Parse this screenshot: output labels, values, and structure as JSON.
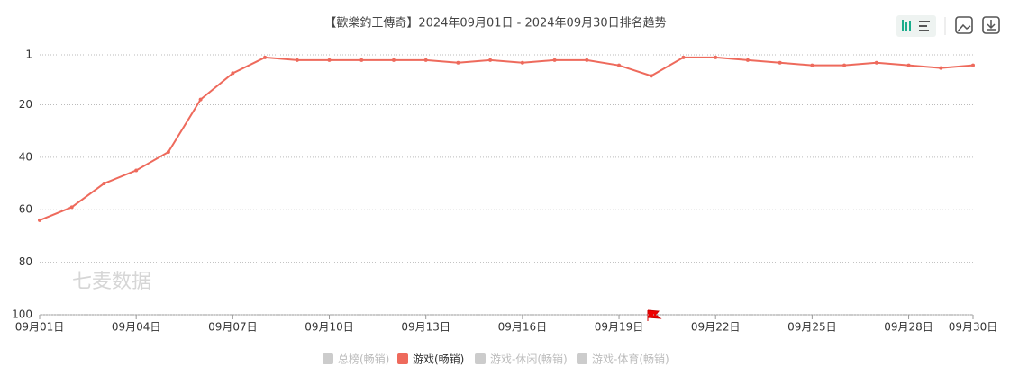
{
  "chart_data": {
    "type": "line",
    "title": "【歡樂釣王傳奇】2024年09月01日 - 2024年09月30日排名趋势",
    "watermark": "七麦数据",
    "categories": [
      "09月01日",
      null,
      null,
      "09月04日",
      null,
      null,
      "09月07日",
      null,
      null,
      "09月10日",
      null,
      null,
      "09月13日",
      null,
      null,
      "09月16日",
      null,
      null,
      "09月19日",
      null,
      null,
      "09月22日",
      null,
      null,
      "09月25日",
      null,
      null,
      "09月28日",
      null,
      "09月30日"
    ],
    "series": [
      {
        "name": "游戏(畅销)",
        "color": "#ee6a5c",
        "values": [
          64,
          59,
          50,
          45,
          38,
          18,
          8,
          2,
          3,
          3,
          3,
          3,
          3,
          4,
          3,
          4,
          3,
          3,
          5,
          9,
          2,
          2,
          3,
          4,
          5,
          5,
          4,
          5,
          6,
          5
        ]
      }
    ],
    "legend": [
      {
        "name": "总榜(畅销)",
        "color": "#cccccc"
      },
      {
        "name": "游戏(畅销)",
        "color": "#ee6a5c"
      },
      {
        "name": "游戏-休闲(畅销)",
        "color": "#cccccc"
      },
      {
        "name": "游戏-体育(畅销)",
        "color": "#cccccc"
      }
    ],
    "ylim": [
      1,
      100
    ],
    "yticks": [
      1,
      20,
      40,
      60,
      80,
      100
    ],
    "y_inverted": true,
    "grid": true
  }
}
